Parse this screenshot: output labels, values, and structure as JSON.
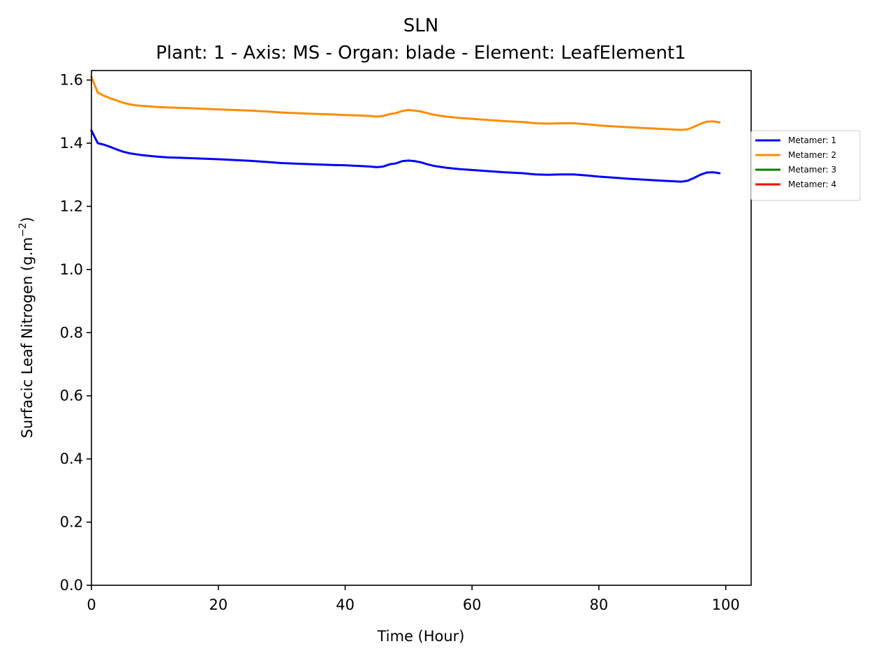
{
  "chart_data": {
    "type": "line",
    "title": "SLN",
    "subtitle": "Plant: 1 - Axis: MS - Organ: blade - Element: LeafElement1",
    "xlabel": "Time (Hour)",
    "ylabel": "Surfacic Leaf Nitrogen (g.m",
    "ylabel_superscript": "−2",
    "ylabel_suffix": ")",
    "xlim": [
      0,
      104
    ],
    "ylim": [
      0,
      1.63
    ],
    "xticks": [
      0,
      20,
      40,
      60,
      80,
      100
    ],
    "xtick_labels": [
      "0",
      "20",
      "40",
      "60",
      "80",
      "100"
    ],
    "yticks": [
      0,
      0.2,
      0.4,
      0.6,
      0.8,
      1.0,
      1.2,
      1.4,
      1.6
    ],
    "ytick_labels": [
      "0.0",
      "0.2",
      "0.4",
      "0.6",
      "0.8",
      "1.0",
      "1.2",
      "1.4",
      "1.6"
    ],
    "grid": false,
    "legend_position": "outside-right-top",
    "series": [
      {
        "name": "Metamer: 1",
        "color": "#0000ff",
        "x": [
          0,
          1,
          2,
          3,
          4,
          5,
          6,
          7,
          8,
          10,
          12,
          15,
          20,
          25,
          28,
          30,
          35,
          38,
          40,
          42,
          44,
          45,
          46,
          47,
          48,
          49,
          50,
          51,
          52,
          53,
          54,
          56,
          58,
          60,
          65,
          68,
          70,
          72,
          74,
          76,
          78,
          80,
          85,
          90,
          93,
          94,
          95,
          96,
          97,
          98,
          99
        ],
        "y": [
          1.44,
          1.4,
          1.395,
          1.388,
          1.38,
          1.373,
          1.368,
          1.365,
          1.362,
          1.358,
          1.355,
          1.353,
          1.349,
          1.344,
          1.34,
          1.337,
          1.333,
          1.331,
          1.33,
          1.328,
          1.326,
          1.324,
          1.326,
          1.333,
          1.336,
          1.343,
          1.345,
          1.343,
          1.339,
          1.333,
          1.328,
          1.322,
          1.318,
          1.315,
          1.308,
          1.305,
          1.301,
          1.3,
          1.301,
          1.301,
          1.298,
          1.294,
          1.287,
          1.281,
          1.278,
          1.281,
          1.29,
          1.3,
          1.307,
          1.308,
          1.305
        ]
      },
      {
        "name": "Metamer: 2",
        "color": "#ff8c00",
        "x": [
          0,
          1,
          2,
          3,
          4,
          5,
          6,
          7,
          8,
          10,
          12,
          15,
          20,
          25,
          28,
          30,
          35,
          38,
          40,
          42,
          44,
          45,
          46,
          47,
          48,
          49,
          50,
          51,
          52,
          53,
          54,
          56,
          58,
          60,
          65,
          68,
          70,
          72,
          74,
          76,
          78,
          80,
          85,
          90,
          93,
          94,
          95,
          96,
          97,
          98,
          99
        ],
        "y": [
          1.61,
          1.56,
          1.55,
          1.542,
          1.535,
          1.528,
          1.523,
          1.52,
          1.518,
          1.515,
          1.513,
          1.511,
          1.507,
          1.503,
          1.5,
          1.497,
          1.493,
          1.491,
          1.489,
          1.488,
          1.486,
          1.484,
          1.486,
          1.492,
          1.495,
          1.502,
          1.505,
          1.503,
          1.5,
          1.495,
          1.49,
          1.484,
          1.48,
          1.477,
          1.47,
          1.467,
          1.463,
          1.462,
          1.463,
          1.463,
          1.46,
          1.456,
          1.45,
          1.445,
          1.442,
          1.444,
          1.452,
          1.461,
          1.468,
          1.469,
          1.466
        ]
      },
      {
        "name": "Metamer: 3",
        "color": "#008000",
        "x": [],
        "y": []
      },
      {
        "name": "Metamer: 4",
        "color": "#ff0000",
        "x": [],
        "y": []
      }
    ]
  }
}
